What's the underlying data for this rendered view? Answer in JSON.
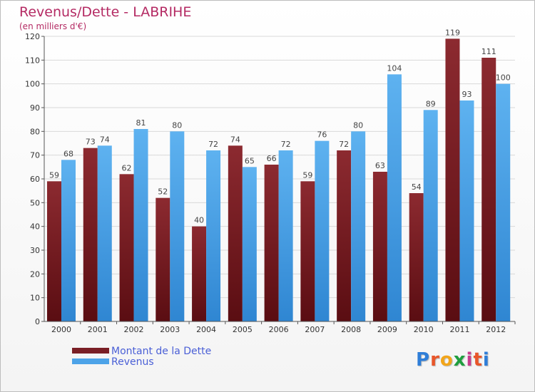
{
  "title": "Revenus/Dette - LABRIHE",
  "subtitle": "(en milliers d'€)",
  "logo": {
    "letters": [
      "P",
      "r",
      "o",
      "x",
      "i",
      "t",
      "i"
    ],
    "colors": [
      "#2f7ed8",
      "#e8562a",
      "#f2a51a",
      "#1f9e3e",
      "#c93c8d",
      "#e8562a",
      "#2f7ed8"
    ]
  },
  "colors": {
    "dette": "#7a1f25",
    "revenus": "#4da3e8",
    "dette_dark": "#4e0f12",
    "revenus_dark": "#2a7cc9"
  },
  "chart_data": {
    "type": "bar",
    "categories": [
      "2000",
      "2001",
      "2002",
      "2003",
      "2004",
      "2005",
      "2006",
      "2007",
      "2008",
      "2009",
      "2010",
      "2011",
      "2012"
    ],
    "series": [
      {
        "name": "Montant de la Dette",
        "values": [
          59,
          73,
          62,
          52,
          40,
          74,
          66,
          59,
          72,
          63,
          54,
          119,
          111
        ]
      },
      {
        "name": "Revenus",
        "values": [
          68,
          74,
          81,
          80,
          72,
          65,
          72,
          76,
          80,
          104,
          89,
          93,
          100
        ]
      }
    ],
    "yticks": [
      0,
      10,
      20,
      30,
      40,
      50,
      60,
      70,
      80,
      90,
      100,
      110,
      120
    ],
    "ylim": [
      0,
      120
    ],
    "grid": true,
    "legend": "bottom-left"
  }
}
